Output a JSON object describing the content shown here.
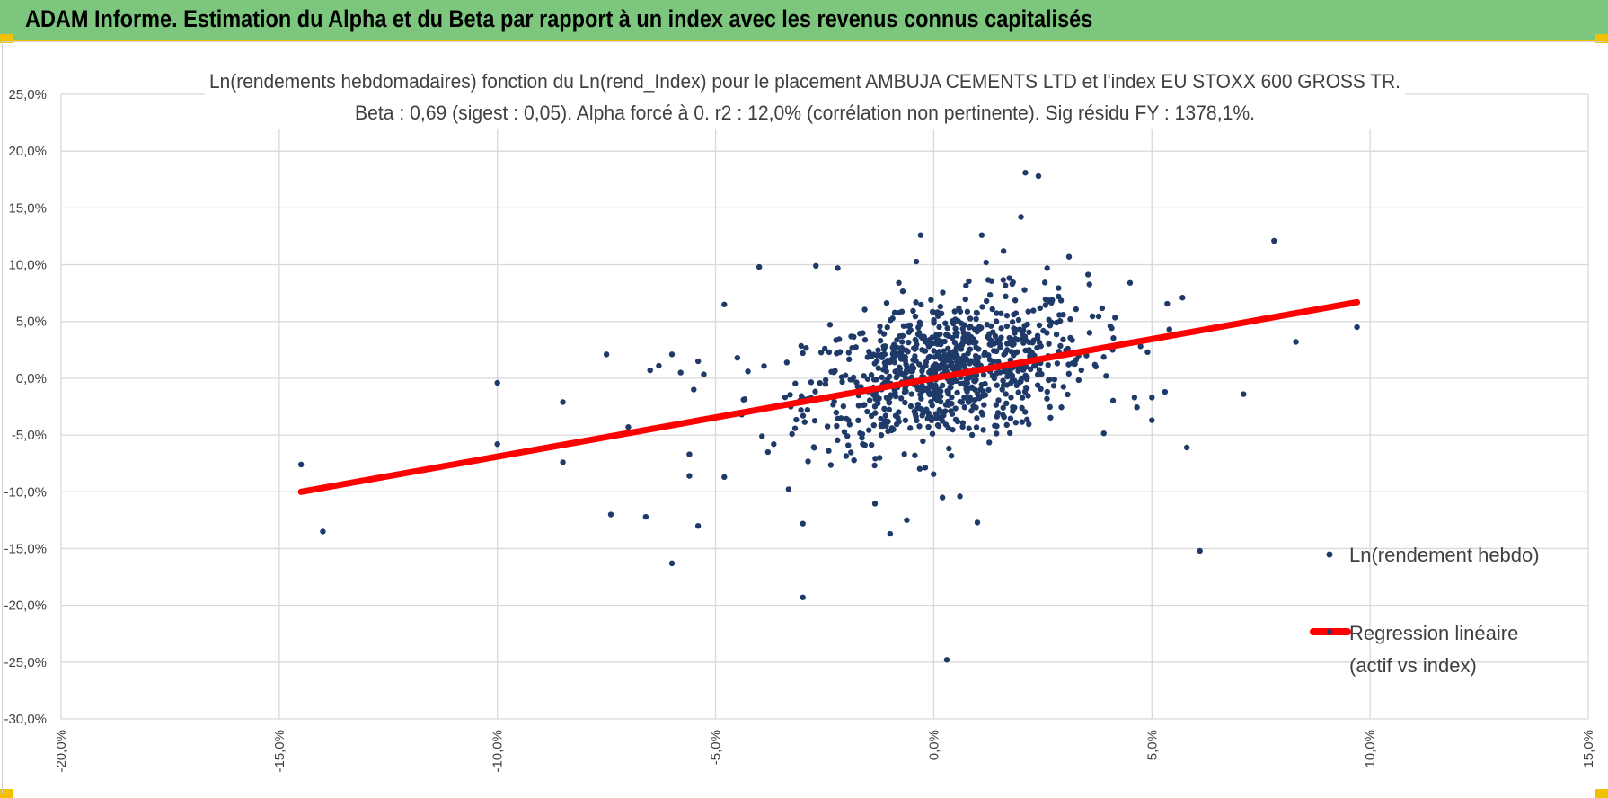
{
  "banner": {
    "title": "ADAM Informe. Estimation du Alpha et du Beta par rapport à un index avec les revenus connus capitalisés"
  },
  "colors": {
    "banner_bg": "#7dc67e",
    "accent_yellow": "#f2c200",
    "points": "#1f3a68",
    "regression": "#ff0000",
    "grid": "#d9d9d9",
    "text": "#404040"
  },
  "chart_data": {
    "type": "scatter",
    "title_line1": "Ln(rendements hebdomadaires) fonction du Ln(rend_Index) pour le placement AMBUJA CEMENTS LTD et l'index EU STOXX 600 GROSS TR.",
    "title_line2": "Beta : 0,69 (sigest : 0,05). Alpha forcé à 0. r2 : 12,0% (corrélation non pertinente). Sig résidu FY : 1378,1%.",
    "xlim": [
      -0.2,
      0.15
    ],
    "ylim": [
      -0.3,
      0.25
    ],
    "x_ticks": [
      "-20,0%",
      "-15,0%",
      "-10,0%",
      "-5,0%",
      "0,0%",
      "5,0%",
      "10,0%",
      "15,0%"
    ],
    "y_ticks": [
      "25,0%",
      "20,0%",
      "15,0%",
      "10,0%",
      "5,0%",
      "0,0%",
      "-5,0%",
      "-10,0%",
      "-15,0%",
      "-20,0%",
      "-25,0%",
      "-30,0%"
    ],
    "grid": true,
    "legend_position": "right",
    "series": [
      {
        "name": "Ln(rendement hebdo)",
        "kind": "scatter",
        "points": [
          [
            -0.145,
            -0.076
          ],
          [
            -0.14,
            -0.135
          ],
          [
            -0.1,
            -0.004
          ],
          [
            -0.1,
            -0.058
          ],
          [
            -0.085,
            -0.021
          ],
          [
            -0.085,
            -0.074
          ],
          [
            -0.075,
            0.021
          ],
          [
            -0.074,
            -0.12
          ],
          [
            -0.07,
            -0.043
          ],
          [
            -0.066,
            -0.122
          ],
          [
            -0.065,
            0.007
          ],
          [
            -0.063,
            0.011
          ],
          [
            -0.06,
            0.021
          ],
          [
            -0.06,
            -0.163
          ],
          [
            -0.058,
            0.005
          ],
          [
            -0.056,
            -0.086
          ],
          [
            -0.056,
            -0.067
          ],
          [
            -0.055,
            -0.01
          ],
          [
            -0.054,
            -0.13
          ],
          [
            -0.054,
            0.015
          ],
          [
            -0.048,
            0.065
          ],
          [
            -0.048,
            -0.087
          ],
          [
            -0.045,
            0.018
          ],
          [
            -0.044,
            -0.032
          ],
          [
            -0.04,
            0.098
          ],
          [
            -0.038,
            -0.065
          ],
          [
            -0.03,
            -0.193
          ],
          [
            -0.03,
            -0.128
          ],
          [
            -0.027,
            0.099
          ],
          [
            -0.022,
            0.097
          ],
          [
            -0.01,
            -0.137
          ],
          [
            -0.008,
            0.084
          ],
          [
            -0.003,
            0.126
          ],
          [
            0.002,
            -0.105
          ],
          [
            0.003,
            -0.248
          ],
          [
            0.006,
            -0.104
          ],
          [
            0.01,
            -0.127
          ],
          [
            0.011,
            0.126
          ],
          [
            0.012,
            0.102
          ],
          [
            0.016,
            0.112
          ],
          [
            0.018,
            0.083
          ],
          [
            0.02,
            0.142
          ],
          [
            0.021,
            0.181
          ],
          [
            0.024,
            0.178
          ],
          [
            0.026,
            0.097
          ],
          [
            0.031,
            0.107
          ],
          [
            0.035,
            0.02
          ],
          [
            0.041,
            0.025
          ],
          [
            0.045,
            0.084
          ],
          [
            0.046,
            -0.017
          ],
          [
            0.049,
            0.023
          ],
          [
            0.05,
            -0.037
          ],
          [
            0.05,
            -0.017
          ],
          [
            0.053,
            -0.012
          ],
          [
            0.054,
            0.043
          ],
          [
            0.057,
            0.071
          ],
          [
            0.058,
            -0.061
          ],
          [
            0.061,
            -0.152
          ],
          [
            0.071,
            -0.014
          ],
          [
            0.078,
            0.121
          ],
          [
            0.083,
            0.032
          ],
          [
            0.097,
            0.045
          ]
        ],
        "cloud_note": "dense cloud centered near (0.3%, 0.5%) with ~900 weekly observations"
      },
      {
        "name": "Regression linéaire (actif vs index)",
        "kind": "line",
        "beta": 0.69,
        "alpha": 0,
        "x_range": [
          -0.145,
          0.097
        ]
      }
    ]
  },
  "legend": {
    "scatter_label": "Ln(rendement hebdo)",
    "line_label_1": "Regression linéaire",
    "line_label_2": "(actif vs index)"
  }
}
